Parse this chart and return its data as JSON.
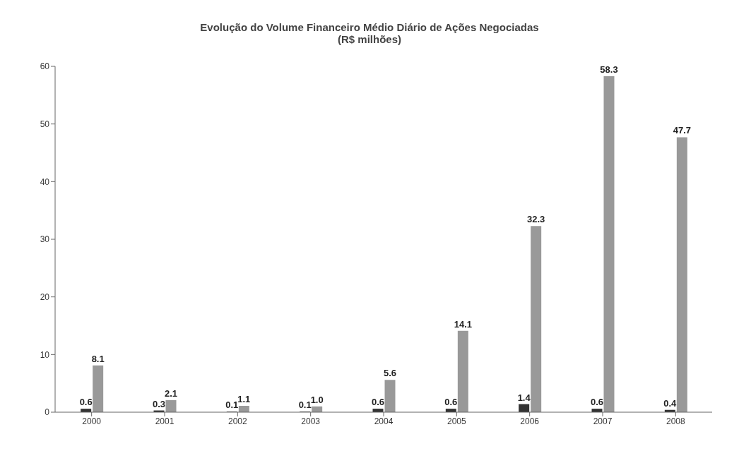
{
  "chart_data": {
    "type": "bar",
    "title": "Evolução do Volume Financeiro Médio Diário de Ações Negociadas",
    "subtitle": "(R$ milhões)",
    "categories": [
      "2000",
      "2001",
      "2002",
      "2003",
      "2004",
      "2005",
      "2006",
      "2007",
      "2008"
    ],
    "series": [
      {
        "color": "#333333",
        "values": [
          0.6,
          0.3,
          0.1,
          0.1,
          0.6,
          0.6,
          1.4,
          0.6,
          0.4
        ],
        "value_labels": [
          "0.6",
          "0.3",
          "0.1",
          "0.1",
          "0.6",
          "0.6",
          "1.4",
          "0.6",
          "0.4"
        ]
      },
      {
        "color": "#999999",
        "values": [
          8.1,
          2.1,
          1.1,
          1.0,
          5.6,
          14.1,
          32.3,
          58.3,
          47.7
        ],
        "value_labels": [
          "8.1",
          "2.1",
          "1.1",
          "1.0",
          "5.6",
          "14.1",
          "32.3",
          "58.3",
          "47.7"
        ]
      }
    ],
    "ylim": [
      0,
      60
    ],
    "yticks": [
      0,
      10,
      20,
      30,
      40,
      50,
      60
    ],
    "grid": false
  }
}
